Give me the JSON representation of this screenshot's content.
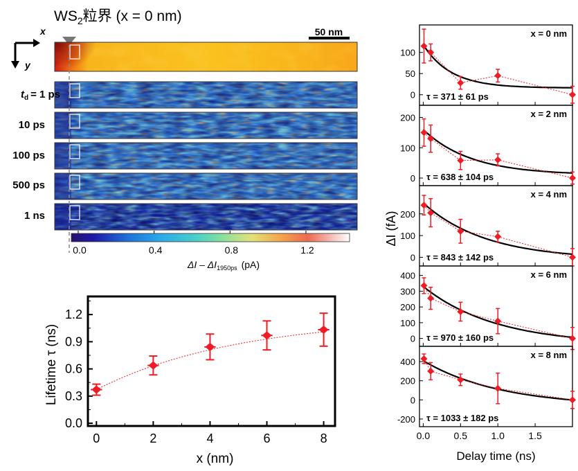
{
  "figure": {
    "header": {
      "prefix": "WS",
      "sub": "2",
      "suffix": "粒界 (x = 0 nm)"
    },
    "axes_glyph": {
      "x": "x",
      "y": "y"
    },
    "scale_bar": "50 nm",
    "delay_label_t": "t",
    "delay_label_sub": "d",
    "delay_labels": [
      "= 1 ps",
      "10 ps",
      "100 ps",
      "500 ps",
      "1 ns"
    ],
    "colorbar": {
      "ticks": [
        "0.0",
        "0.4",
        "0.8",
        "1.2"
      ],
      "label_main": "ΔI – ΔI",
      "label_sub": "1950ps",
      "label_unit": "(pA)"
    }
  },
  "chart_data": [
    {
      "type": "scatter",
      "xlabel": "x (nm)",
      "ylabel": "Lifetime τ (ns)",
      "xlim": [
        -0.3,
        8.4
      ],
      "ylim": [
        -0.03,
        1.4
      ],
      "xticks": [
        "0",
        "2",
        "4",
        "6",
        "8"
      ],
      "yticks": [
        "0.0",
        "0.3",
        "0.6",
        "0.9",
        "1.2"
      ],
      "x": [
        0,
        2,
        4,
        6,
        8
      ],
      "y": [
        0.371,
        0.638,
        0.843,
        0.97,
        1.033
      ],
      "yerr": [
        0.061,
        0.104,
        0.142,
        0.16,
        0.182
      ],
      "xerr": 0.2,
      "marker_color": "#ee1c24",
      "fit_line": "dotted"
    },
    {
      "type": "line",
      "shared_xlabel": "Delay time (ns)",
      "shared_ylabel": "ΔI (fA)",
      "xlim": [
        -0.05,
        2.0
      ],
      "xticks": [
        "0.0",
        "0.5",
        "1.0",
        "1.5"
      ],
      "marker_color": "#ee1c24",
      "fit_color": "#000000",
      "panels": [
        {
          "title": "x = 0 nm",
          "tau_label": "τ = 371 ± 61 ps",
          "ylim": [
            -25,
            165
          ],
          "yticks": [
            "0",
            "50",
            "100"
          ],
          "x": [
            0.01,
            0.1,
            0.5,
            1.0,
            2.0
          ],
          "y": [
            115,
            100,
            28,
            45,
            0
          ],
          "yerr": [
            40,
            20,
            15,
            15,
            20
          ],
          "fit": {
            "y0": 118,
            "amp": 102,
            "tau": 0.371
          }
        },
        {
          "title": "x = 2 nm",
          "tau_label": "τ = 638 ± 104 ps",
          "ylim": [
            -25,
            240
          ],
          "yticks": [
            "0",
            "100",
            "200"
          ],
          "x": [
            0.01,
            0.1,
            0.5,
            1.0,
            2.0
          ],
          "y": [
            150,
            130,
            58,
            60,
            0
          ],
          "yerr": [
            45,
            45,
            30,
            20,
            20
          ],
          "fit": {
            "y0": 160,
            "amp": 150,
            "tau": 0.638
          }
        },
        {
          "title": "x = 4 nm",
          "tau_label": "τ = 843 ± 142 ps",
          "ylim": [
            -40,
            330
          ],
          "yticks": [
            "0",
            "100",
            "200"
          ],
          "x": [
            0.01,
            0.1,
            0.5,
            1.0,
            2.0
          ],
          "y": [
            240,
            205,
            120,
            95,
            0
          ],
          "yerr": [
            45,
            65,
            55,
            25,
            40
          ],
          "fit": {
            "y0": 250,
            "amp": 260,
            "tau": 0.843
          }
        },
        {
          "title": "x = 6 nm",
          "tau_label": "τ = 970 ± 160 ps",
          "ylim": [
            -50,
            460
          ],
          "yticks": [
            "0",
            "100",
            "200",
            "300",
            "400"
          ],
          "x": [
            0.01,
            0.1,
            0.5,
            1.0,
            2.0
          ],
          "y": [
            335,
            255,
            170,
            110,
            0
          ],
          "yerr": [
            50,
            70,
            60,
            80,
            70
          ],
          "fit": {
            "y0": 330,
            "amp": 370,
            "tau": 0.97
          }
        },
        {
          "title": "x = 8 nm",
          "tau_label": "τ = 1033 ± 182 ps",
          "ylim": [
            -280,
            560
          ],
          "yticks": [
            "-200",
            "0",
            "200",
            "400"
          ],
          "x": [
            0.01,
            0.1,
            0.5,
            1.0,
            2.0
          ],
          "y": [
            430,
            300,
            210,
            120,
            0
          ],
          "yerr": [
            50,
            90,
            60,
            160,
            90
          ],
          "fit": {
            "y0": 410,
            "amp": 480,
            "tau": 1.033
          }
        }
      ]
    }
  ]
}
